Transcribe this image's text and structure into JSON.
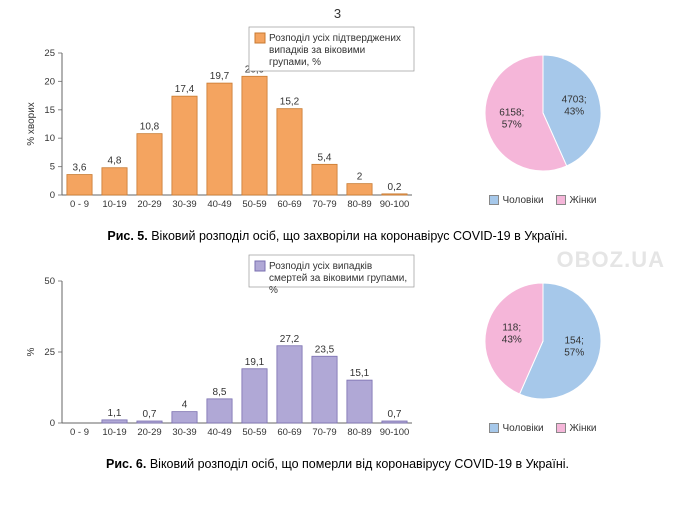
{
  "page_number": "3",
  "watermark": "OBOZ.UA",
  "fig5": {
    "bar": {
      "type": "bar",
      "categories": [
        "0 - 9",
        "10-19",
        "20-29",
        "30-39",
        "40-49",
        "50-59",
        "60-69",
        "70-79",
        "80-89",
        "90-100"
      ],
      "values": [
        3.6,
        4.8,
        10.8,
        17.4,
        19.7,
        20.9,
        15.2,
        5.4,
        2,
        0.2
      ],
      "bar_color": "#f4a460",
      "bar_border": "#c87a30",
      "ylim": [
        0,
        25
      ],
      "ytick_step": 5,
      "ylabel": "% хворих",
      "legend_text": "Розподіл усіх підтверджених випадків за віковими групами, %",
      "label_fontsize": 10
    },
    "pie": {
      "type": "pie",
      "slices": [
        {
          "label": "Чоловіки",
          "value": 4703,
          "pct": "43%",
          "color": "#a6c8ea",
          "label_text": "4703;\n43%",
          "label_color": "#2a5a9a"
        },
        {
          "label": "Жінки",
          "value": 6158,
          "pct": "57%",
          "color": "#f5b6d9",
          "label_text": "6158;\n57%",
          "label_color": "#b84a8a"
        }
      ],
      "legend_male": "Чоловіки",
      "legend_female": "Жінки"
    },
    "caption_prefix": "Рис. 5.",
    "caption_text": "Віковий розподіл осіб, що захворіли на коронавірус COVID-19 в Україні."
  },
  "fig6": {
    "bar": {
      "type": "bar",
      "categories": [
        "0 - 9",
        "10-19",
        "20-29",
        "30-39",
        "40-49",
        "50-59",
        "60-69",
        "70-79",
        "80-89",
        "90-100"
      ],
      "values": [
        0,
        1.1,
        0.7,
        4,
        8.5,
        19.1,
        27.2,
        23.5,
        15.1,
        0.7
      ],
      "bar_color": "#b0a8d6",
      "bar_border": "#7a6fb0",
      "ylim": [
        0,
        50
      ],
      "ytick_step": 25,
      "ylabel": "%",
      "legend_text": "Розподіл усіх випадків смертей за віковими групами, %",
      "label_fontsize": 10
    },
    "pie": {
      "type": "pie",
      "slices": [
        {
          "label": "Чоловіки",
          "value": 154,
          "pct": "57%",
          "color": "#a6c8ea",
          "label_text": "154;\n57%",
          "label_color": "#2a5a9a"
        },
        {
          "label": "Жінки",
          "value": 118,
          "pct": "43%",
          "color": "#f5b6d9",
          "label_text": "118;\n43%",
          "label_color": "#b84a8a"
        }
      ],
      "legend_male": "Чоловіки",
      "legend_female": "Жінки"
    },
    "caption_prefix": "Рис. 6.",
    "caption_text": "Віковий розподіл осіб, що померли від коронавірусу COVID-19 в Україні."
  }
}
